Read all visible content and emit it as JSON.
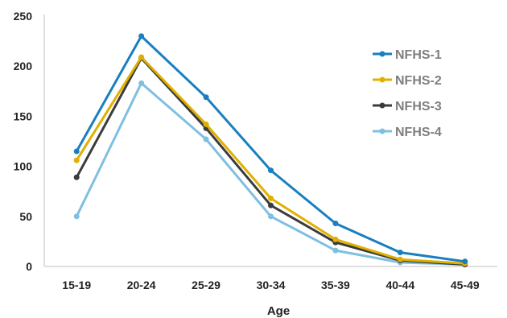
{
  "chart_data": {
    "type": "line",
    "title": "",
    "xlabel": "Age",
    "ylabel": "",
    "categories": [
      "15-19",
      "20-24",
      "25-29",
      "30-34",
      "35-39",
      "40-44",
      "45-49"
    ],
    "ylim": [
      0,
      250
    ],
    "yticks": [
      0,
      50,
      100,
      150,
      200,
      250
    ],
    "grid": false,
    "legend_position": "right",
    "series": [
      {
        "name": "NFHS-1",
        "color": "#1a7fbf",
        "values": [
          115,
          230,
          169,
          96,
          43,
          14,
          5
        ]
      },
      {
        "name": "NFHS-2",
        "color": "#e0b000",
        "values": [
          106,
          209,
          142,
          68,
          27,
          7,
          3
        ]
      },
      {
        "name": "NFHS-3",
        "color": "#3b3b3b",
        "values": [
          89,
          208,
          138,
          61,
          24,
          6,
          2
        ]
      },
      {
        "name": "NFHS-4",
        "color": "#7fbfe0",
        "values": [
          50,
          183,
          127,
          50,
          16,
          4,
          2
        ]
      }
    ]
  }
}
